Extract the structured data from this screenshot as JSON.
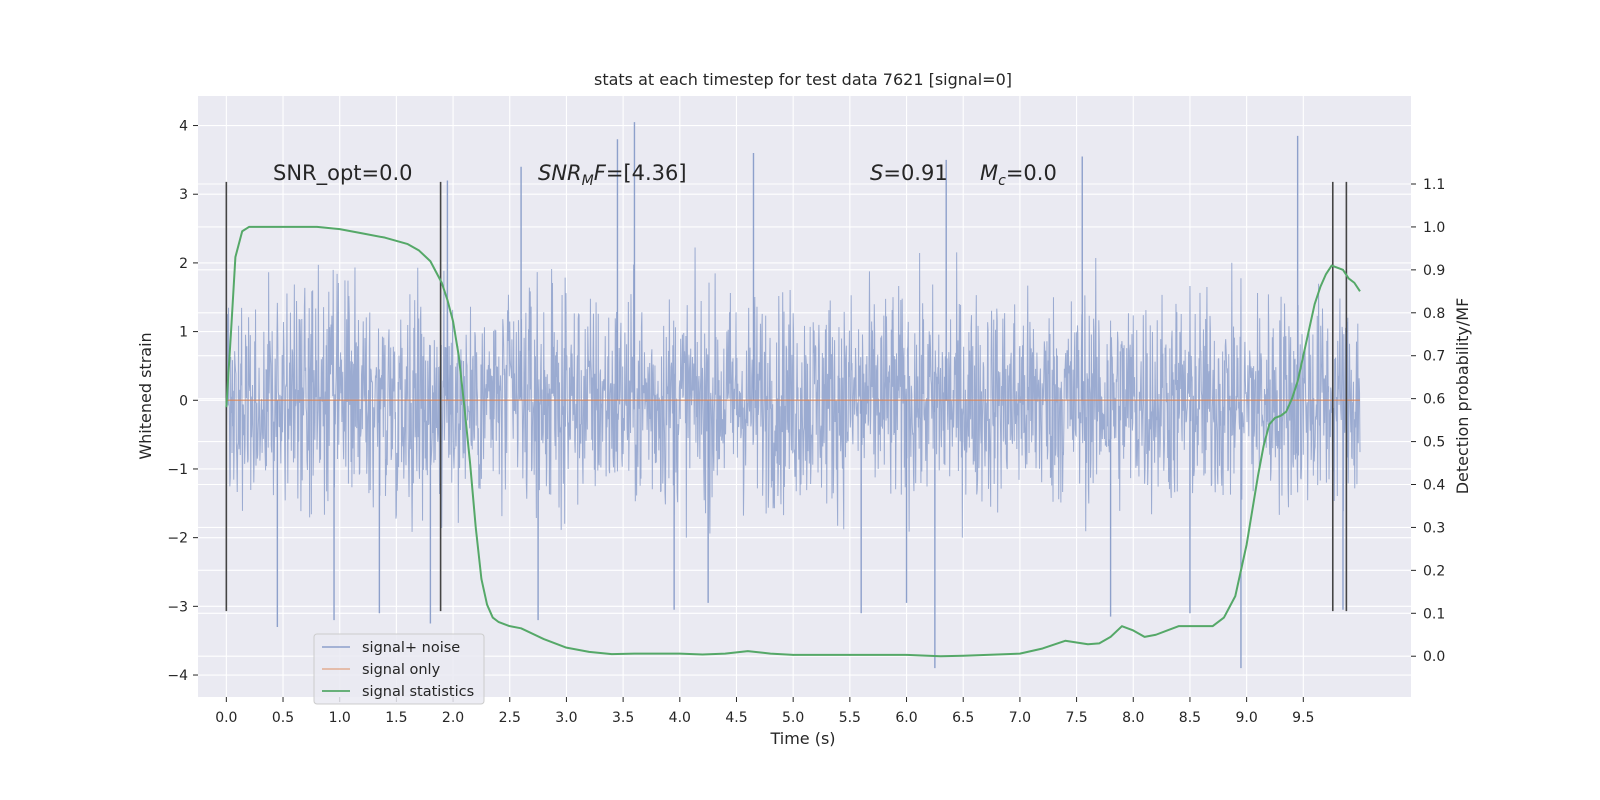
{
  "chart_data": {
    "type": "line",
    "title": "stats at each timestep for test data 7621 [signal=0]",
    "xlabel": "Time (s)",
    "ylabel": "Whitened strain",
    "ylabel_right": "Detection probability/MF",
    "xlim": [
      -0.25,
      10.45
    ],
    "ylim": [
      -4.32,
      4.43
    ],
    "ylim_right": [
      -0.095,
      1.305
    ],
    "x_ticks": [
      "0.0",
      "0.5",
      "1.0",
      "1.5",
      "2.0",
      "2.5",
      "3.0",
      "3.5",
      "4.0",
      "4.5",
      "5.0",
      "5.5",
      "6.0",
      "6.5",
      "7.0",
      "7.5",
      "8.0",
      "8.5",
      "9.0",
      "9.5"
    ],
    "y_ticks": [
      "4",
      "3",
      "2",
      "1",
      "0",
      "−1",
      "−2",
      "−3",
      "−4"
    ],
    "y_right_ticks": [
      "1.1",
      "1.0",
      "0.9",
      "0.8",
      "0.7",
      "0.6",
      "0.5",
      "0.4",
      "0.3",
      "0.2",
      "0.1",
      "0.0"
    ],
    "grid": true,
    "legend_position": "lower-left",
    "colors": {
      "noise": "#8da0cb",
      "signal_only": "#dd8452",
      "statistics": "#55a868",
      "background": "#eaeaf2",
      "vlines": "#444444"
    },
    "series": [
      {
        "name": "signal+ noise",
        "axis": "left",
        "x_range": [
          0.0,
          10.0
        ],
        "envelope": [
          -2.0,
          2.4
        ],
        "spikes": [
          [
            0.45,
            -3.3
          ],
          [
            0.95,
            -3.2
          ],
          [
            1.35,
            -3.1
          ],
          [
            1.8,
            -3.25
          ],
          [
            1.95,
            3.2
          ],
          [
            2.6,
            3.4
          ],
          [
            2.75,
            -3.2
          ],
          [
            3.45,
            3.8
          ],
          [
            3.6,
            4.05
          ],
          [
            3.95,
            -3.05
          ],
          [
            4.25,
            -2.95
          ],
          [
            4.65,
            3.6
          ],
          [
            5.6,
            -3.1
          ],
          [
            6.0,
            -2.95
          ],
          [
            6.25,
            -3.9
          ],
          [
            6.35,
            3.5
          ],
          [
            7.55,
            3.55
          ],
          [
            7.8,
            -3.15
          ],
          [
            8.5,
            -3.1
          ],
          [
            8.95,
            -3.9
          ],
          [
            9.45,
            3.85
          ],
          [
            9.85,
            -3.05
          ]
        ]
      },
      {
        "name": "signal only",
        "axis": "left",
        "x": [
          0.0,
          10.0
        ],
        "y": [
          0.0,
          0.0
        ]
      },
      {
        "name": "signal statistics",
        "axis": "right",
        "x": [
          0.0,
          0.04,
          0.08,
          0.14,
          0.2,
          0.3,
          0.5,
          0.8,
          1.0,
          1.2,
          1.4,
          1.6,
          1.7,
          1.8,
          1.85,
          1.9,
          1.95,
          2.0,
          2.05,
          2.1,
          2.15,
          2.2,
          2.25,
          2.3,
          2.35,
          2.4,
          2.5,
          2.6,
          2.8,
          3.0,
          3.2,
          3.4,
          3.6,
          3.8,
          4.0,
          4.2,
          4.4,
          4.6,
          4.8,
          5.0,
          5.5,
          6.0,
          6.3,
          6.5,
          6.8,
          7.0,
          7.2,
          7.4,
          7.6,
          7.7,
          7.8,
          7.9,
          8.0,
          8.1,
          8.2,
          8.3,
          8.4,
          8.5,
          8.6,
          8.7,
          8.8,
          8.9,
          9.0,
          9.05,
          9.1,
          9.15,
          9.2,
          9.25,
          9.3,
          9.35,
          9.4,
          9.45,
          9.5,
          9.55,
          9.6,
          9.65,
          9.7,
          9.75,
          9.8,
          9.85,
          9.9,
          9.95,
          10.0
        ],
        "y": [
          0.58,
          0.75,
          0.93,
          0.99,
          1.0,
          1.0,
          1.0,
          1.0,
          0.995,
          0.985,
          0.975,
          0.96,
          0.945,
          0.92,
          0.895,
          0.87,
          0.83,
          0.78,
          0.7,
          0.58,
          0.45,
          0.3,
          0.18,
          0.12,
          0.09,
          0.08,
          0.07,
          0.065,
          0.04,
          0.02,
          0.01,
          0.005,
          0.006,
          0.006,
          0.006,
          0.004,
          0.006,
          0.012,
          0.006,
          0.003,
          0.003,
          0.003,
          0.0,
          0.001,
          0.004,
          0.006,
          0.018,
          0.036,
          0.028,
          0.03,
          0.045,
          0.07,
          0.06,
          0.045,
          0.05,
          0.06,
          0.07,
          0.07,
          0.07,
          0.07,
          0.09,
          0.14,
          0.26,
          0.34,
          0.42,
          0.49,
          0.54,
          0.555,
          0.56,
          0.57,
          0.6,
          0.64,
          0.7,
          0.76,
          0.82,
          0.86,
          0.89,
          0.91,
          0.905,
          0.9,
          0.88,
          0.87,
          0.85
        ]
      }
    ],
    "vertical_lines": [
      0.0,
      1.89,
      9.76,
      9.88
    ],
    "vertical_line_yrange": [
      -3.07,
      3.18
    ],
    "annotations": {
      "snr_opt": "SNR_opt=0.0",
      "snr_mf_italic": "SNR",
      "snr_mf_sub": "M",
      "snr_mf_italic2": "F",
      "snr_mf_value": "=[4.36]",
      "s_italic": "S",
      "s_value": "=0.91",
      "mc_italic": "M",
      "mc_sub": "c",
      "mc_value": "=0.0"
    }
  }
}
